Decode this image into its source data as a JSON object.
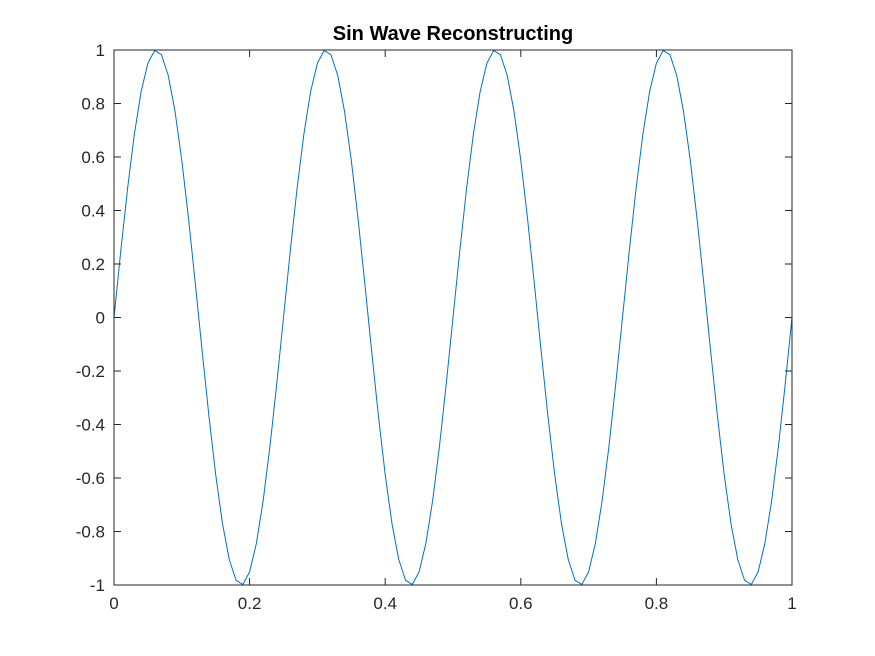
{
  "chart_data": {
    "type": "line",
    "title": "Sin Wave Reconstructing",
    "xlabel": "",
    "ylabel": "",
    "xlim": [
      0,
      1
    ],
    "ylim": [
      -1,
      1
    ],
    "x_ticks": [
      0,
      0.2,
      0.4,
      0.6,
      0.8,
      1
    ],
    "x_tick_labels": [
      "0",
      "0.2",
      "0.4",
      "0.6",
      "0.8",
      "1"
    ],
    "y_ticks": [
      -1,
      -0.8,
      -0.6,
      -0.4,
      -0.2,
      0,
      0.2,
      0.4,
      0.6,
      0.8,
      1
    ],
    "y_tick_labels": [
      "-1",
      "-0.8",
      "-0.6",
      "-0.4",
      "-0.2",
      "0",
      "0.2",
      "0.4",
      "0.6",
      "0.8",
      "1"
    ],
    "grid": false,
    "legend": "none",
    "series": [
      {
        "color": "#0072BD",
        "x": [
          0,
          0.01,
          0.02,
          0.03,
          0.04,
          0.05,
          0.06,
          0.07,
          0.08,
          0.09,
          0.1,
          0.11,
          0.12,
          0.13,
          0.14,
          0.15,
          0.16,
          0.17,
          0.18,
          0.19,
          0.2,
          0.21,
          0.22,
          0.23,
          0.24,
          0.25,
          0.26,
          0.27,
          0.28,
          0.29,
          0.3,
          0.31,
          0.32,
          0.33,
          0.34,
          0.35,
          0.36,
          0.37,
          0.38,
          0.39,
          0.4,
          0.41,
          0.42,
          0.43,
          0.44,
          0.45,
          0.46,
          0.47,
          0.48,
          0.49,
          0.5,
          0.51,
          0.52,
          0.53,
          0.54,
          0.55,
          0.56,
          0.57,
          0.58,
          0.59,
          0.6,
          0.61,
          0.62,
          0.63,
          0.64,
          0.65,
          0.66,
          0.67,
          0.68,
          0.69,
          0.7,
          0.71,
          0.72,
          0.73,
          0.74,
          0.75,
          0.76,
          0.77,
          0.78,
          0.79,
          0.8,
          0.81,
          0.82,
          0.83,
          0.84,
          0.85,
          0.86,
          0.87,
          0.88,
          0.89,
          0.9,
          0.91,
          0.92,
          0.93,
          0.94,
          0.95,
          0.96,
          0.97,
          0.98,
          0.99,
          1
        ],
        "y": [
          0,
          0.2487,
          0.4818,
          0.6845,
          0.8443,
          0.9511,
          0.998,
          0.9823,
          0.9048,
          0.7705,
          0.5878,
          0.3681,
          0.1253,
          -0.1253,
          -0.3681,
          -0.5878,
          -0.7705,
          -0.9048,
          -0.9823,
          -0.998,
          -0.9511,
          -0.8443,
          -0.6845,
          -0.4818,
          -0.2487,
          0,
          0.2487,
          0.4818,
          0.6845,
          0.8443,
          0.9511,
          0.998,
          0.9823,
          0.9048,
          0.7705,
          0.5878,
          0.3681,
          0.1253,
          -0.1253,
          -0.3681,
          -0.5878,
          -0.7705,
          -0.9048,
          -0.9823,
          -0.998,
          -0.9511,
          -0.8443,
          -0.6845,
          -0.4818,
          -0.2487,
          0,
          0.2487,
          0.4818,
          0.6845,
          0.8443,
          0.9511,
          0.998,
          0.9823,
          0.9048,
          0.7705,
          0.5878,
          0.3681,
          0.1253,
          -0.1253,
          -0.3681,
          -0.5878,
          -0.7705,
          -0.9048,
          -0.9823,
          -0.998,
          -0.9511,
          -0.8443,
          -0.6845,
          -0.4818,
          -0.2487,
          0,
          0.2487,
          0.4818,
          0.6845,
          0.8443,
          0.9511,
          0.998,
          0.9823,
          0.9048,
          0.7705,
          0.5878,
          0.3681,
          0.1253,
          -0.1253,
          -0.3681,
          -0.5878,
          -0.7705,
          -0.9048,
          -0.9823,
          -0.998,
          -0.9511,
          -0.8443,
          -0.6845,
          -0.4818,
          -0.2487,
          0
        ]
      }
    ]
  }
}
